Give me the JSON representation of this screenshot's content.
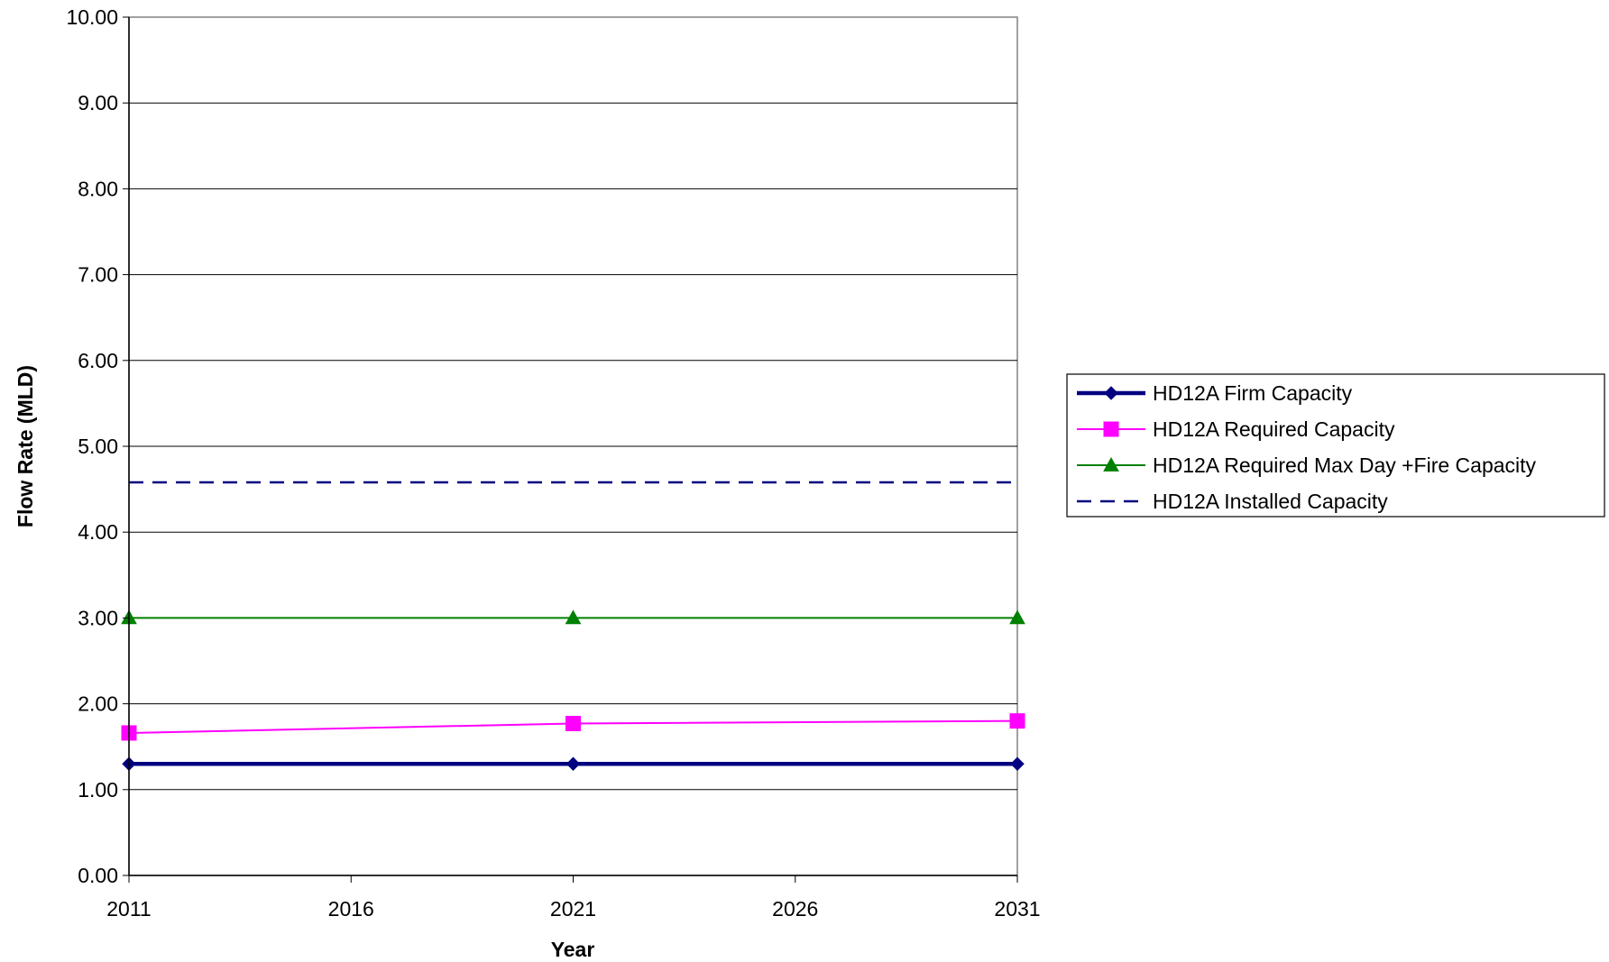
{
  "chart_data": {
    "type": "line",
    "title": "",
    "xlabel": "Year",
    "ylabel": "Flow Rate (MLD)",
    "x_ticks": [
      "2011",
      "2016",
      "2021",
      "2026",
      "2031"
    ],
    "y_ticks": [
      "0.00",
      "1.00",
      "2.00",
      "3.00",
      "4.00",
      "5.00",
      "6.00",
      "7.00",
      "8.00",
      "9.00",
      "10.00"
    ],
    "xlim": [
      2011,
      2031
    ],
    "ylim": [
      0,
      10
    ],
    "grid": "horizontal",
    "legend_position": "right",
    "series": [
      {
        "name": "HD12A Firm Capacity",
        "color": "#000080",
        "marker": "diamond",
        "line": "solid-thick",
        "x": [
          2011,
          2021,
          2031
        ],
        "values": [
          1.3,
          1.3,
          1.3
        ]
      },
      {
        "name": "HD12A Required Capacity",
        "color": "#ff00ff",
        "marker": "square",
        "line": "solid",
        "x": [
          2011,
          2021,
          2031
        ],
        "values": [
          1.66,
          1.77,
          1.8
        ]
      },
      {
        "name": "HD12A Required Max Day +Fire Capacity",
        "color": "#008000",
        "marker": "triangle",
        "line": "solid",
        "x": [
          2011,
          2021,
          2031
        ],
        "values": [
          3.0,
          3.0,
          3.0
        ]
      },
      {
        "name": "HD12A Installed Capacity",
        "color": "#000080",
        "marker": "none",
        "line": "dashed",
        "x": [
          2011,
          2021,
          2031
        ],
        "values": [
          4.58,
          4.58,
          4.58
        ]
      }
    ]
  }
}
